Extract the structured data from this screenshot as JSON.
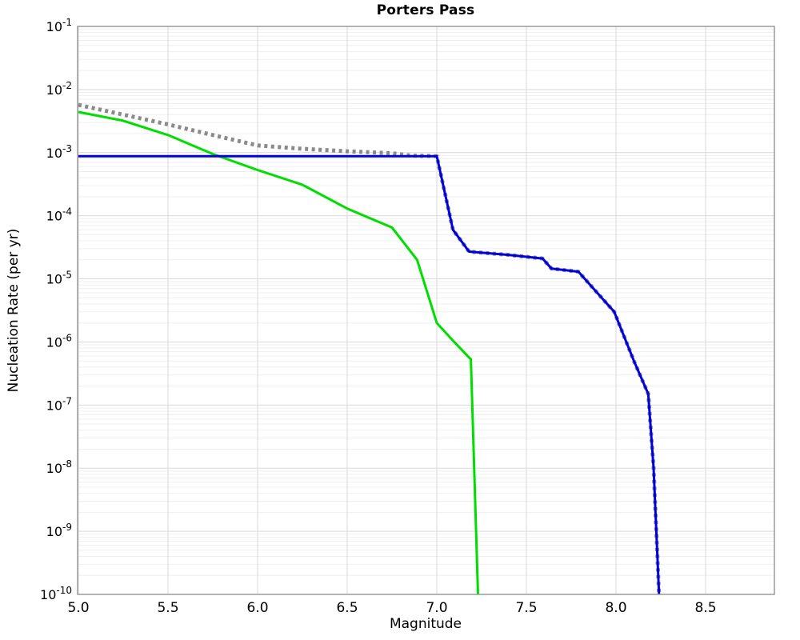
{
  "page": {
    "background": "#ffffff"
  },
  "chart_data": {
    "type": "line",
    "title": "Porters Pass",
    "xlabel": "Magnitude",
    "ylabel": "Nucleation Rate (per yr)",
    "x_axis": {
      "min": 5.0,
      "max": 8.88,
      "ticks": [
        {
          "value": 5.0,
          "label": "5.0"
        },
        {
          "value": 5.5,
          "label": "5.5"
        },
        {
          "value": 6.0,
          "label": "6.0"
        },
        {
          "value": 6.5,
          "label": "6.5"
        },
        {
          "value": 7.0,
          "label": "7.0"
        },
        {
          "value": 7.5,
          "label": "7.5"
        },
        {
          "value": 8.0,
          "label": "8.0"
        },
        {
          "value": 8.5,
          "label": "8.5"
        }
      ]
    },
    "y_axis": {
      "scale": "log",
      "min_exponent": -10,
      "max_exponent": -1,
      "tick_exponents": [
        "-1",
        "-2",
        "-3",
        "-4",
        "-5",
        "-6",
        "-7",
        "-8",
        "-9",
        "-10"
      ],
      "tick_base": "10"
    },
    "grid": {
      "major_color": "#d9d9d9",
      "minor_color": "#efefef",
      "border_color": "#9a9a9a",
      "background": "#ffffff"
    },
    "legend": "none",
    "series": [
      {
        "name": "gray-dotted-rate",
        "color": "#8a8a8a",
        "style": "dotted",
        "width": 5,
        "points": [
          [
            5.0,
            0.0057
          ],
          [
            5.25,
            0.004
          ],
          [
            5.5,
            0.0028
          ],
          [
            5.75,
            0.0019
          ],
          [
            6.0,
            0.0013
          ],
          [
            6.25,
            0.00115
          ],
          [
            6.5,
            0.00105
          ],
          [
            6.75,
            0.00098
          ],
          [
            6.85,
            0.0009
          ],
          [
            7.0,
            0.00088
          ],
          [
            7.09,
            6e-05
          ],
          [
            7.18,
            2.7e-05
          ],
          [
            7.4,
            2.4e-05
          ],
          [
            7.59,
            2.1e-05
          ],
          [
            7.64,
            1.45e-05
          ],
          [
            7.69,
            1.4e-05
          ],
          [
            7.79,
            1.3e-05
          ],
          [
            7.99,
            3e-06
          ],
          [
            8.1,
            5e-07
          ],
          [
            8.18,
            1.5e-07
          ],
          [
            8.21,
            1e-08
          ],
          [
            8.24,
            1e-10
          ]
        ]
      },
      {
        "name": "green-solid-rate",
        "color": "#00dd00",
        "style": "solid",
        "width": 3,
        "points": [
          [
            5.0,
            0.0044
          ],
          [
            5.25,
            0.0032
          ],
          [
            5.5,
            0.0019
          ],
          [
            5.75,
            0.00095
          ],
          [
            6.0,
            0.00053
          ],
          [
            6.25,
            0.00031
          ],
          [
            6.5,
            0.00013
          ],
          [
            6.75,
            6.5e-05
          ],
          [
            6.89,
            2e-05
          ],
          [
            7.0,
            2e-06
          ],
          [
            7.09,
            1.05e-06
          ],
          [
            7.19,
            5.3e-07
          ],
          [
            7.23,
            1e-10
          ]
        ]
      },
      {
        "name": "blue-solid-rate",
        "color": "#0000dd",
        "style": "solid",
        "width": 3,
        "points": [
          [
            5.0,
            0.00088
          ],
          [
            7.0,
            0.00088
          ],
          [
            7.09,
            6e-05
          ],
          [
            7.18,
            2.7e-05
          ],
          [
            7.4,
            2.4e-05
          ],
          [
            7.59,
            2.1e-05
          ],
          [
            7.64,
            1.45e-05
          ],
          [
            7.69,
            1.4e-05
          ],
          [
            7.79,
            1.3e-05
          ],
          [
            7.99,
            3e-06
          ],
          [
            8.1,
            5e-07
          ],
          [
            8.18,
            1.5e-07
          ],
          [
            8.21,
            1e-08
          ],
          [
            8.24,
            1e-10
          ]
        ]
      }
    ]
  }
}
